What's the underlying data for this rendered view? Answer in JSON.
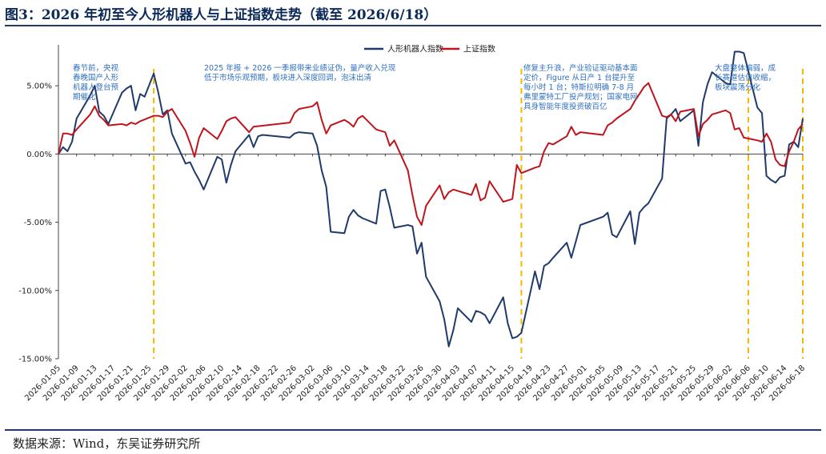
{
  "header": {
    "title": "图3：2026 年初至今人形机器人与上证指数走势（截至 2026/6/18）"
  },
  "footer": {
    "source": "数据来源：Wind，东吴证券研究所"
  },
  "colors": {
    "series_humanoid": "#1f3a6b",
    "series_sse": "#c0141c",
    "divider": "#f5b800",
    "annotation": "#2f6fbf"
  },
  "chart_data": {
    "type": "line",
    "ylim": [
      -15,
      8
    ],
    "yticks": [
      5,
      0,
      -5,
      -10,
      -15
    ],
    "ytick_labels": [
      "5.00%",
      "0.00%",
      "-5.00%",
      "-10.00%",
      "-15.00%"
    ],
    "xlim": [
      "2026-01-05",
      "2026-06-18"
    ],
    "xtick_labels": [
      "2026-01-05",
      "2026-01-09",
      "2026-01-13",
      "2026-01-17",
      "2026-01-21",
      "2026-01-25",
      "2026-01-29",
      "2026-02-02",
      "2026-02-06",
      "2026-02-10",
      "2026-02-14",
      "2026-02-18",
      "2026-02-22",
      "2026-02-26",
      "2026-03-02",
      "2026-03-06",
      "2026-03-10",
      "2026-03-14",
      "2026-03-18",
      "2026-03-22",
      "2026-03-26",
      "2026-03-30",
      "2026-04-03",
      "2026-04-07",
      "2026-04-11",
      "2026-04-15",
      "2026-04-19",
      "2026-04-23",
      "2026-04-27",
      "2026-05-01",
      "2026-05-05",
      "2026-05-09",
      "2026-05-13",
      "2026-05-17",
      "2026-05-21",
      "2026-05-25",
      "2026-05-29",
      "2026-06-02",
      "2026-06-06",
      "2026-06-10",
      "2026-06-14",
      "2026-06-18"
    ],
    "grid": false,
    "legend_position": "top-center",
    "series": [
      {
        "name": "人形机器人指数",
        "points": [
          [
            "2026-01-05",
            0.0
          ],
          [
            "2026-01-06",
            0.5
          ],
          [
            "2026-01-07",
            0.2
          ],
          [
            "2026-01-08",
            0.9
          ],
          [
            "2026-01-09",
            2.6
          ],
          [
            "2026-01-12",
            4.3
          ],
          [
            "2026-01-13",
            5.0
          ],
          [
            "2026-01-14",
            3.1
          ],
          [
            "2026-01-15",
            2.8
          ],
          [
            "2026-01-16",
            2.2
          ],
          [
            "2026-01-19",
            4.5
          ],
          [
            "2026-01-20",
            4.8
          ],
          [
            "2026-01-21",
            5.0
          ],
          [
            "2026-01-22",
            3.2
          ],
          [
            "2026-01-23",
            4.4
          ],
          [
            "2026-01-24",
            4.2
          ],
          [
            "2026-01-26",
            5.9
          ],
          [
            "2026-01-27",
            4.5
          ],
          [
            "2026-01-28",
            2.9
          ],
          [
            "2026-01-29",
            3.2
          ],
          [
            "2026-01-30",
            1.5
          ],
          [
            "2026-02-02",
            -0.7
          ],
          [
            "2026-02-03",
            -0.6
          ],
          [
            "2026-02-04",
            -1.3
          ],
          [
            "2026-02-05",
            -1.9
          ],
          [
            "2026-02-06",
            -2.6
          ],
          [
            "2026-02-09",
            -0.2
          ],
          [
            "2026-02-10",
            -0.4
          ],
          [
            "2026-02-11",
            -2.1
          ],
          [
            "2026-02-12",
            -0.8
          ],
          [
            "2026-02-13",
            0.2
          ],
          [
            "2026-02-16",
            1.4
          ],
          [
            "2026-02-17",
            0.5
          ],
          [
            "2026-02-18",
            1.3
          ],
          [
            "2026-02-19",
            1.4
          ],
          [
            "2026-02-25",
            1.2
          ],
          [
            "2026-02-26",
            1.5
          ],
          [
            "2026-02-27",
            1.6
          ],
          [
            "2026-03-02",
            1.5
          ],
          [
            "2026-03-03",
            0.6
          ],
          [
            "2026-03-04",
            -1.2
          ],
          [
            "2026-03-05",
            -2.4
          ],
          [
            "2026-03-06",
            -5.7
          ],
          [
            "2026-03-09",
            -5.8
          ],
          [
            "2026-03-10",
            -4.6
          ],
          [
            "2026-03-11",
            -4.1
          ],
          [
            "2026-03-12",
            -4.5
          ],
          [
            "2026-03-13",
            -4.7
          ],
          [
            "2026-03-16",
            -5.1
          ],
          [
            "2026-03-17",
            -2.7
          ],
          [
            "2026-03-18",
            -2.6
          ],
          [
            "2026-03-19",
            -3.9
          ],
          [
            "2026-03-20",
            -5.4
          ],
          [
            "2026-03-23",
            -5.2
          ],
          [
            "2026-03-24",
            -5.3
          ],
          [
            "2026-03-25",
            -7.3
          ],
          [
            "2026-03-26",
            -6.5
          ],
          [
            "2026-03-27",
            -9.0
          ],
          [
            "2026-03-30",
            -10.8
          ],
          [
            "2026-03-31",
            -12.1
          ],
          [
            "2026-04-01",
            -14.1
          ],
          [
            "2026-04-02",
            -12.9
          ],
          [
            "2026-04-03",
            -11.3
          ],
          [
            "2026-04-06",
            -12.3
          ],
          [
            "2026-04-07",
            -11.5
          ],
          [
            "2026-04-08",
            -11.6
          ],
          [
            "2026-04-09",
            -11.8
          ],
          [
            "2026-04-10",
            -12.4
          ],
          [
            "2026-04-13",
            -10.5
          ],
          [
            "2026-04-14",
            -12.4
          ],
          [
            "2026-04-15",
            -13.5
          ],
          [
            "2026-04-16",
            -13.4
          ],
          [
            "2026-04-17",
            -13.1
          ],
          [
            "2026-04-20",
            -8.6
          ],
          [
            "2026-04-21",
            -9.9
          ],
          [
            "2026-04-22",
            -8.2
          ],
          [
            "2026-04-23",
            -8.0
          ],
          [
            "2026-04-24",
            -7.6
          ],
          [
            "2026-04-27",
            -6.5
          ],
          [
            "2026-04-28",
            -7.6
          ],
          [
            "2026-04-29",
            -6.4
          ],
          [
            "2026-04-30",
            -5.2
          ],
          [
            "2026-05-05",
            -4.6
          ],
          [
            "2026-05-06",
            -4.3
          ],
          [
            "2026-05-07",
            -5.9
          ],
          [
            "2026-05-08",
            -6.1
          ],
          [
            "2026-05-11",
            -4.2
          ],
          [
            "2026-05-12",
            -6.6
          ],
          [
            "2026-05-13",
            -4.3
          ],
          [
            "2026-05-14",
            -3.9
          ],
          [
            "2026-05-15",
            -3.6
          ],
          [
            "2026-05-18",
            -1.8
          ],
          [
            "2026-05-19",
            2.6
          ],
          [
            "2026-05-20",
            2.9
          ],
          [
            "2026-05-21",
            3.3
          ],
          [
            "2026-05-22",
            2.4
          ],
          [
            "2026-05-25",
            3.2
          ],
          [
            "2026-05-26",
            0.6
          ],
          [
            "2026-05-27",
            3.8
          ],
          [
            "2026-05-28",
            5.1
          ],
          [
            "2026-05-29",
            6.0
          ],
          [
            "2026-06-01",
            5.2
          ],
          [
            "2026-06-02",
            5.1
          ],
          [
            "2026-06-03",
            7.5
          ],
          [
            "2026-06-04",
            7.5
          ],
          [
            "2026-06-05",
            7.4
          ],
          [
            "2026-06-08",
            3.4
          ],
          [
            "2026-06-09",
            3.0
          ],
          [
            "2026-06-10",
            -1.6
          ],
          [
            "2026-06-11",
            -1.9
          ],
          [
            "2026-06-12",
            -2.1
          ],
          [
            "2026-06-13",
            -1.7
          ],
          [
            "2026-06-14",
            -1.6
          ],
          [
            "2026-06-15",
            0.7
          ],
          [
            "2026-06-16",
            0.9
          ],
          [
            "2026-06-17",
            0.5
          ],
          [
            "2026-06-18",
            2.6
          ]
        ]
      },
      {
        "name": "上证指数",
        "points": [
          [
            "2026-01-05",
            0.0
          ],
          [
            "2026-01-06",
            1.5
          ],
          [
            "2026-01-07",
            1.5
          ],
          [
            "2026-01-08",
            1.4
          ],
          [
            "2026-01-09",
            1.8
          ],
          [
            "2026-01-12",
            2.9
          ],
          [
            "2026-01-13",
            3.5
          ],
          [
            "2026-01-14",
            2.8
          ],
          [
            "2026-01-15",
            2.5
          ],
          [
            "2026-01-16",
            2.1
          ],
          [
            "2026-01-19",
            2.2
          ],
          [
            "2026-01-20",
            2.1
          ],
          [
            "2026-01-21",
            2.3
          ],
          [
            "2026-01-22",
            2.2
          ],
          [
            "2026-01-23",
            2.4
          ],
          [
            "2026-01-26",
            2.8
          ],
          [
            "2026-01-27",
            2.8
          ],
          [
            "2026-01-28",
            2.7
          ],
          [
            "2026-01-29",
            3.1
          ],
          [
            "2026-01-30",
            3.3
          ],
          [
            "2026-02-02",
            1.7
          ],
          [
            "2026-02-03",
            0.8
          ],
          [
            "2026-02-04",
            -0.2
          ],
          [
            "2026-02-05",
            1.2
          ],
          [
            "2026-02-06",
            1.9
          ],
          [
            "2026-02-09",
            1.1
          ],
          [
            "2026-02-10",
            1.7
          ],
          [
            "2026-02-11",
            2.4
          ],
          [
            "2026-02-12",
            2.6
          ],
          [
            "2026-02-13",
            2.7
          ],
          [
            "2026-02-16",
            1.6
          ],
          [
            "2026-02-17",
            2.0
          ],
          [
            "2026-02-25",
            2.3
          ],
          [
            "2026-02-26",
            3.0
          ],
          [
            "2026-02-27",
            3.3
          ],
          [
            "2026-03-02",
            3.5
          ],
          [
            "2026-03-03",
            3.8
          ],
          [
            "2026-03-04",
            2.5
          ],
          [
            "2026-03-05",
            1.5
          ],
          [
            "2026-03-06",
            2.1
          ],
          [
            "2026-03-09",
            2.5
          ],
          [
            "2026-03-10",
            2.3
          ],
          [
            "2026-03-11",
            2.0
          ],
          [
            "2026-03-12",
            2.6
          ],
          [
            "2026-03-13",
            2.8
          ],
          [
            "2026-03-16",
            1.8
          ],
          [
            "2026-03-17",
            1.7
          ],
          [
            "2026-03-18",
            1.6
          ],
          [
            "2026-03-19",
            0.6
          ],
          [
            "2026-03-20",
            1.0
          ],
          [
            "2026-03-23",
            -1.2
          ],
          [
            "2026-03-24",
            -3.0
          ],
          [
            "2026-03-25",
            -4.6
          ],
          [
            "2026-03-26",
            -5.2
          ],
          [
            "2026-03-27",
            -3.8
          ],
          [
            "2026-03-30",
            -2.3
          ],
          [
            "2026-03-31",
            -3.3
          ],
          [
            "2026-04-01",
            -2.8
          ],
          [
            "2026-04-02",
            -2.6
          ],
          [
            "2026-04-03",
            -2.7
          ],
          [
            "2026-04-06",
            -3.0
          ],
          [
            "2026-04-07",
            -2.2
          ],
          [
            "2026-04-08",
            -3.4
          ],
          [
            "2026-04-09",
            -3.2
          ],
          [
            "2026-04-10",
            -2.0
          ],
          [
            "2026-04-13",
            -3.5
          ],
          [
            "2026-04-14",
            -3.4
          ],
          [
            "2026-04-15",
            -3.3
          ],
          [
            "2026-04-16",
            -0.8
          ],
          [
            "2026-04-17",
            -1.4
          ],
          [
            "2026-04-20",
            -1.0
          ],
          [
            "2026-04-21",
            -0.9
          ],
          [
            "2026-04-22",
            0.2
          ],
          [
            "2026-04-23",
            0.8
          ],
          [
            "2026-04-24",
            0.7
          ],
          [
            "2026-04-27",
            1.3
          ],
          [
            "2026-04-28",
            2.0
          ],
          [
            "2026-04-29",
            1.4
          ],
          [
            "2026-04-30",
            1.6
          ],
          [
            "2026-05-05",
            1.4
          ],
          [
            "2026-05-06",
            2.1
          ],
          [
            "2026-05-07",
            2.3
          ],
          [
            "2026-05-08",
            2.6
          ],
          [
            "2026-05-11",
            3.3
          ],
          [
            "2026-05-12",
            3.9
          ],
          [
            "2026-05-13",
            4.4
          ],
          [
            "2026-05-14",
            4.9
          ],
          [
            "2026-05-15",
            5.2
          ],
          [
            "2026-05-18",
            2.8
          ],
          [
            "2026-05-19",
            2.7
          ],
          [
            "2026-05-20",
            2.9
          ],
          [
            "2026-05-21",
            2.4
          ],
          [
            "2026-05-22",
            3.1
          ],
          [
            "2026-05-25",
            3.3
          ],
          [
            "2026-05-26",
            1.3
          ],
          [
            "2026-05-27",
            2.2
          ],
          [
            "2026-05-28",
            2.5
          ],
          [
            "2026-05-29",
            2.9
          ],
          [
            "2026-06-01",
            3.2
          ],
          [
            "2026-06-02",
            3.0
          ],
          [
            "2026-06-03",
            1.8
          ],
          [
            "2026-06-04",
            1.9
          ],
          [
            "2026-06-05",
            1.2
          ],
          [
            "2026-06-08",
            1.0
          ],
          [
            "2026-06-09",
            0.9
          ],
          [
            "2026-06-10",
            1.5
          ],
          [
            "2026-06-11",
            0.9
          ],
          [
            "2026-06-12",
            -0.4
          ],
          [
            "2026-06-13",
            -0.8
          ],
          [
            "2026-06-14",
            -0.9
          ],
          [
            "2026-06-15",
            0.2
          ],
          [
            "2026-06-16",
            0.9
          ],
          [
            "2026-06-17",
            1.8
          ],
          [
            "2026-06-18",
            2.2
          ]
        ]
      }
    ],
    "dividers": [
      "2026-01-26",
      "2026-04-17",
      "2026-06-06",
      "2026-06-18"
    ],
    "annotations": [
      {
        "lines": [
          "春节前，央视",
          "春晚国产人形",
          "机器人登台预",
          "期催化"
        ]
      },
      {
        "lines": [
          "2025 年报 + 2026 一季报带来业绩证伪，量产收入兑现",
          "低于市场乐观预期，板块进入深度回调，泡沫出清"
        ]
      },
      {
        "lines": [
          "修复主升浪，产业验证驱动基本面",
          "定价，Figure 从日产 1 台提升至",
          "每小时 1 台；特斯拉明确 7-8 月",
          "弗里蒙特工厂投产规划；国家电网",
          "具身智能年度投资破百亿"
        ]
      },
      {
        "lines": [
          "大盘整体偏弱，成",
          "长赛道估值收缩，",
          "板块震荡分化"
        ]
      }
    ]
  }
}
